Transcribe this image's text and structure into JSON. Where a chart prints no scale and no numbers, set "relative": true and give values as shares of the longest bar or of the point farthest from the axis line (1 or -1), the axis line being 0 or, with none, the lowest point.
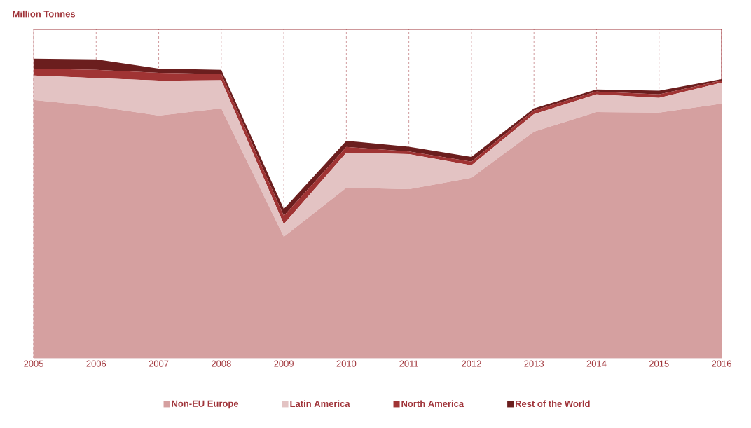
{
  "chart_data": {
    "type": "area",
    "ylabel": "Million Tonnes",
    "relative": true,
    "stacked": true,
    "grid": "x",
    "legend": "bottom",
    "categories": [
      "2005",
      "2006",
      "2007",
      "2008",
      "2009",
      "2010",
      "2011",
      "2012",
      "2013",
      "2014",
      "2015",
      "2016"
    ],
    "series": [
      {
        "name": "Non-EU Europe",
        "color": "#d5a0a0",
        "values": [
          0.862,
          0.841,
          0.81,
          0.834,
          0.405,
          0.569,
          0.564,
          0.602,
          0.756,
          0.822,
          0.82,
          0.85
        ]
      },
      {
        "name": "Latin America",
        "color": "#e3c3c3",
        "values": [
          0.082,
          0.094,
          0.117,
          0.094,
          0.042,
          0.117,
          0.117,
          0.042,
          0.059,
          0.059,
          0.049,
          0.07
        ]
      },
      {
        "name": "North America",
        "color": "#a03434",
        "values": [
          0.023,
          0.028,
          0.026,
          0.021,
          0.028,
          0.019,
          0.009,
          0.012,
          0.012,
          0.009,
          0.012,
          0.007
        ]
      },
      {
        "name": "Rest of the World",
        "color": "#6b1e1e",
        "values": [
          0.033,
          0.035,
          0.014,
          0.014,
          0.023,
          0.021,
          0.016,
          0.016,
          0.007,
          0.007,
          0.012,
          0.005
        ]
      }
    ]
  }
}
